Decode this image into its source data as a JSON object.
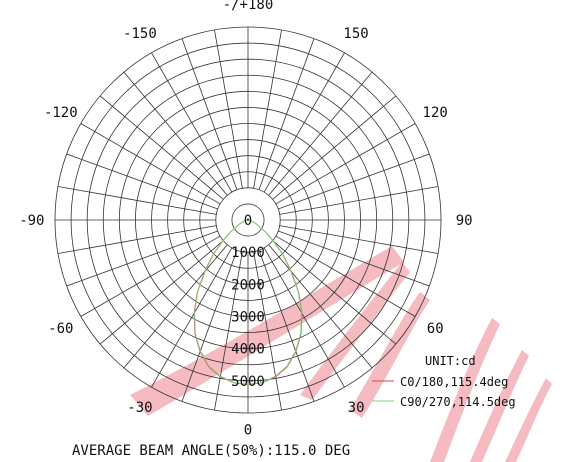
{
  "chart_data": {
    "type": "polar",
    "title": "",
    "angle_labels": [
      "-/+180",
      "150",
      "120",
      "90",
      "60",
      "30",
      "0",
      "-30",
      "-60",
      "-90",
      "-120",
      "-150"
    ],
    "angle_values_deg": [
      180,
      150,
      120,
      90,
      60,
      30,
      0,
      -30,
      -60,
      -90,
      -120,
      -150
    ],
    "radial_labels": [
      "0",
      "1000",
      "2000",
      "3000",
      "4000",
      "5000"
    ],
    "radial_range": [
      0,
      6000
    ],
    "angular_grid_step_deg": 10,
    "radial_grid_step": 500,
    "grid": true,
    "unit_label": "UNIT:cd",
    "legend_position": "bottom-right",
    "series": [
      {
        "name": "C0/180,115.4deg",
        "color": "#e23c4b",
        "angles": [
          -90,
          -85,
          -80,
          -75,
          -70,
          -65,
          -60,
          -55,
          -50,
          -45,
          -40,
          -35,
          -30,
          -25,
          -20,
          -15,
          -10,
          -5,
          0,
          5,
          10,
          15,
          20,
          25,
          30,
          35,
          40,
          45,
          50,
          55,
          60,
          65,
          70,
          75,
          80,
          85,
          90
        ],
        "values": [
          0,
          25,
          60,
          110,
          180,
          280,
          400,
          700,
          1050,
          1550,
          2100,
          2750,
          3350,
          3900,
          4350,
          4720,
          4950,
          5080,
          5120,
          5080,
          4950,
          4720,
          4350,
          3900,
          3350,
          2750,
          2100,
          1550,
          1050,
          700,
          400,
          280,
          180,
          110,
          60,
          25,
          0
        ]
      },
      {
        "name": "C90/270,114.5deg",
        "color": "#7ed67e",
        "angles": [
          -90,
          -85,
          -80,
          -75,
          -70,
          -65,
          -60,
          -55,
          -50,
          -45,
          -40,
          -35,
          -30,
          -25,
          -20,
          -15,
          -10,
          -5,
          0,
          5,
          10,
          15,
          20,
          25,
          30,
          35,
          40,
          45,
          50,
          55,
          60,
          65,
          70,
          75,
          80,
          85,
          90
        ],
        "values": [
          0,
          20,
          55,
          105,
          170,
          270,
          390,
          680,
          1020,
          1520,
          2060,
          2720,
          3320,
          3880,
          4330,
          4700,
          4930,
          5070,
          5110,
          5070,
          4930,
          4700,
          4330,
          3880,
          3320,
          2720,
          2060,
          1520,
          1020,
          680,
          390,
          270,
          170,
          105,
          55,
          20,
          0
        ]
      }
    ],
    "footer": "AVERAGE BEAM ANGLE(50%):115.0 DEG"
  },
  "watermark": {
    "color": "#e23c4b",
    "opacity": 0.35
  }
}
